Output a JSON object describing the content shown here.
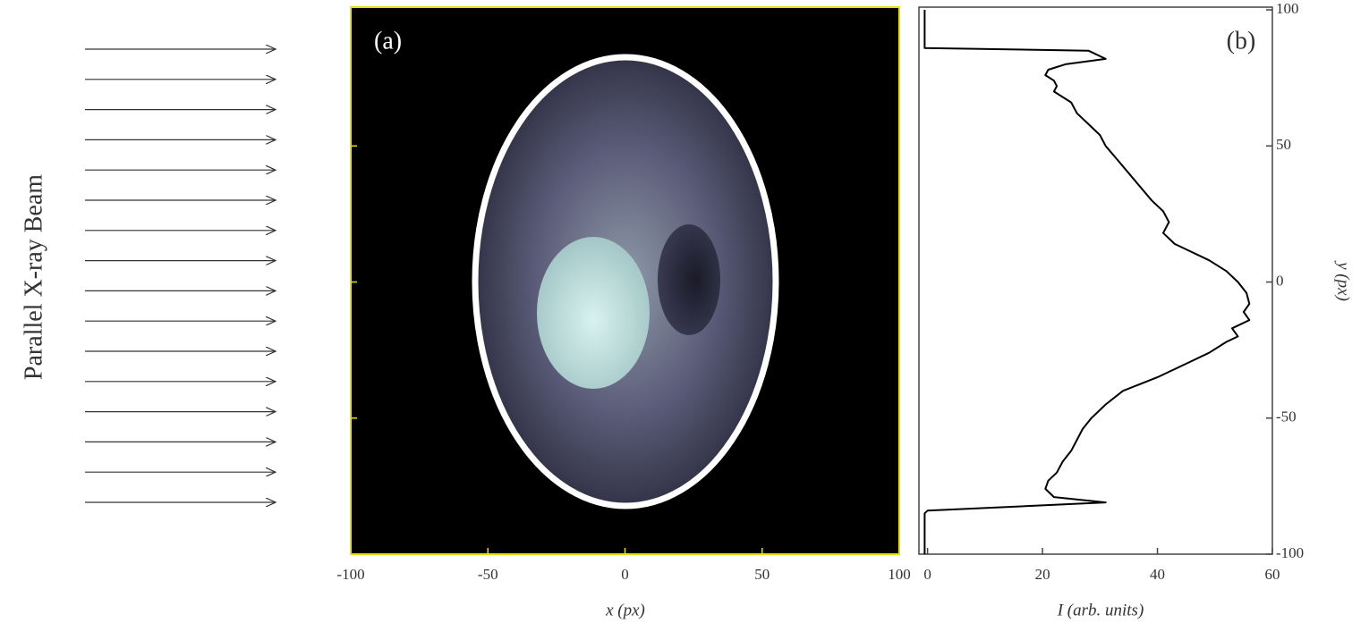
{
  "annotation": "Parallel X-ray Beam",
  "chart_data": [
    {
      "type": "image",
      "label": "(a)",
      "xlabel": "x (px)",
      "xlim": [
        -100,
        100
      ],
      "xticks": [
        -100,
        -50,
        0,
        50,
        100
      ],
      "ylim": [
        -100,
        101
      ],
      "yticks": [
        -50,
        0,
        50
      ]
    },
    {
      "type": "line",
      "label": "(b)",
      "xlabel": "I (arb. units)",
      "ylabel": "y (px)",
      "xlim": [
        -1.5,
        60
      ],
      "xticks": [
        0,
        20,
        40,
        60
      ],
      "ylim": [
        -100,
        101
      ],
      "yticks": [
        -100,
        -50,
        0,
        50,
        100
      ],
      "color": "#000000",
      "y": [
        100,
        86,
        85,
        82,
        80,
        78,
        76,
        74,
        72,
        70,
        66,
        62,
        58,
        54,
        50,
        45,
        40,
        35,
        30,
        26,
        22,
        18,
        14,
        12,
        8,
        4,
        0,
        -4,
        -8,
        -11,
        -14,
        -17,
        -20,
        -22,
        -26,
        -30,
        -35,
        -40,
        -45,
        -50,
        -54,
        -58,
        -62,
        -66,
        -70,
        -73,
        -76,
        -79,
        -81,
        -84,
        -85,
        -100
      ],
      "values": [
        -0.5,
        -0.5,
        28,
        31,
        24,
        21,
        20.5,
        22,
        22.5,
        22,
        25,
        26,
        28,
        30,
        31,
        33,
        35,
        37,
        39,
        41,
        42,
        41,
        43,
        45,
        49,
        52,
        54,
        55.5,
        56,
        55,
        56,
        53,
        54,
        52,
        49,
        45,
        40,
        34,
        31,
        28.5,
        27,
        26,
        25,
        23.5,
        22.5,
        21,
        20.5,
        22,
        31,
        0,
        -0.5,
        -0.5
      ]
    }
  ]
}
